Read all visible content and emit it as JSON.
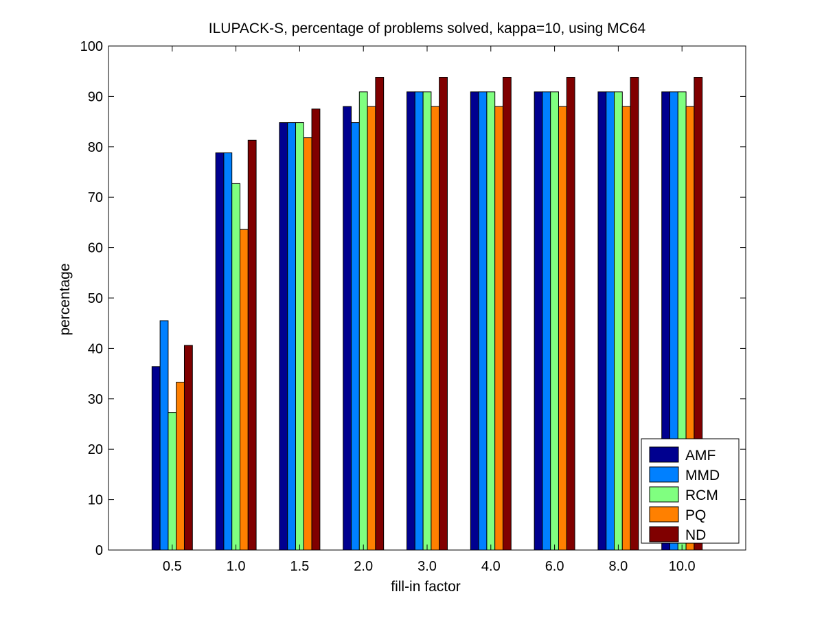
{
  "chart_data": {
    "type": "bar",
    "title": "ILUPACK-S, percentage of problems solved, kappa=10, using MC64",
    "xlabel": "fill-in factor",
    "ylabel": "percentage",
    "ylim": [
      0,
      100
    ],
    "yticks": [
      "0",
      "10",
      "20",
      "30",
      "40",
      "50",
      "60",
      "70",
      "80",
      "90",
      "100"
    ],
    "categories": [
      "0.5",
      "1.0",
      "1.5",
      "2.0",
      "3.0",
      "4.0",
      "6.0",
      "8.0",
      "10.0"
    ],
    "series": [
      {
        "name": "AMF",
        "color": "#00008f",
        "values": [
          36.4,
          78.8,
          84.8,
          88.0,
          90.9,
          90.9,
          90.9,
          90.9,
          90.9
        ]
      },
      {
        "name": "MMD",
        "color": "#0080ff",
        "values": [
          45.5,
          78.8,
          84.8,
          84.8,
          90.9,
          90.9,
          90.9,
          90.9,
          90.9
        ]
      },
      {
        "name": "RCM",
        "color": "#80ff80",
        "values": [
          27.3,
          72.7,
          84.8,
          90.9,
          90.9,
          90.9,
          90.9,
          90.9,
          90.9
        ]
      },
      {
        "name": "PQ",
        "color": "#ff8000",
        "values": [
          33.3,
          63.6,
          81.8,
          88.0,
          88.0,
          88.0,
          88.0,
          88.0,
          88.0
        ]
      },
      {
        "name": "ND",
        "color": "#800000",
        "values": [
          40.6,
          81.3,
          87.5,
          93.8,
          93.8,
          93.8,
          93.8,
          93.8,
          93.8
        ]
      }
    ],
    "legend_position": "bottom-right",
    "grid": false
  }
}
